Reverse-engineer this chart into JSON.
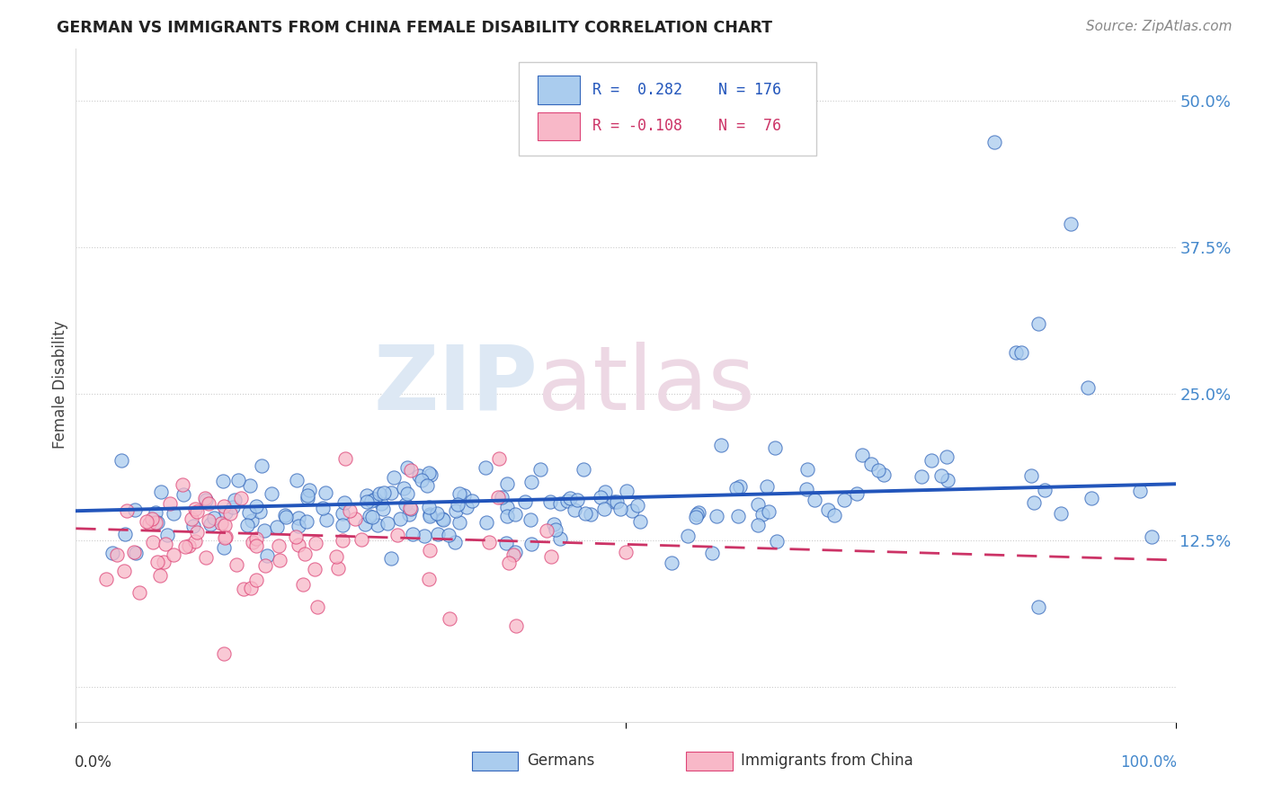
{
  "title": "GERMAN VS IMMIGRANTS FROM CHINA FEMALE DISABILITY CORRELATION CHART",
  "source": "Source: ZipAtlas.com",
  "ylabel": "Female Disability",
  "yticks": [
    0.0,
    0.125,
    0.25,
    0.375,
    0.5
  ],
  "ytick_labels": [
    "",
    "12.5%",
    "25.0%",
    "37.5%",
    "50.0%"
  ],
  "xlim": [
    0.0,
    1.0
  ],
  "ylim": [
    -0.03,
    0.545
  ],
  "german_fill": "#aaccee",
  "german_edge": "#3366bb",
  "china_fill": "#f8b8c8",
  "china_edge": "#dd4477",
  "watermark_color": "#d8e4f0",
  "watermark_color2": "#f0d8e0",
  "background_color": "#ffffff",
  "grid_color": "#cccccc",
  "ytick_color": "#4488cc",
  "title_color": "#222222",
  "source_color": "#888888",
  "legend_edge": "#cccccc",
  "trend_german_color": "#2255bb",
  "trend_china_color": "#cc3366",
  "german_trend_start_y": 0.15,
  "german_trend_end_y": 0.173,
  "china_trend_start_y": 0.135,
  "china_trend_end_y": 0.108,
  "german_seed": 77,
  "china_seed": 42
}
